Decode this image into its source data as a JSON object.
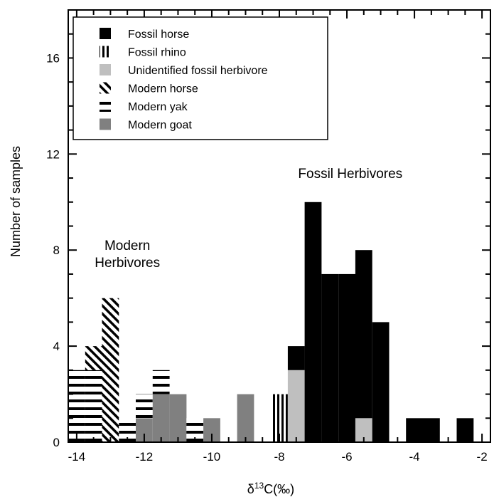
{
  "chart_data": {
    "type": "bar",
    "subtype": "stacked-histogram",
    "xlabel": "δ13C(‰)",
    "ylabel": "Number of samples",
    "xlim": [
      -14.25,
      -1.75
    ],
    "ylim": [
      0,
      18
    ],
    "x_ticks": [
      -14,
      -12,
      -10,
      -8,
      -6,
      -4,
      -2
    ],
    "y_ticks": [
      0,
      4,
      8,
      12,
      16
    ],
    "bin_width": 0.5,
    "legend_position": "top-left",
    "legend": [
      {
        "name": "Fossil horse",
        "color": "#000000",
        "pattern": "solid"
      },
      {
        "name": "Fossil rhino",
        "color": "#000000",
        "pattern": "vertical-lines"
      },
      {
        "name": "Unidentified fossil herbivore",
        "color": "#bfbfbf",
        "pattern": "solid"
      },
      {
        "name": "Modern horse",
        "color": "#000000",
        "pattern": "diagonal-lines"
      },
      {
        "name": "Modern yak",
        "color": "#000000",
        "pattern": "horizontal-lines"
      },
      {
        "name": "Modern goat",
        "color": "#808080",
        "pattern": "solid"
      }
    ],
    "annotations": [
      {
        "lines": [
          "Modern",
          "Herbivores"
        ],
        "x": -12.5,
        "y": 8.0
      },
      {
        "lines": [
          "Fossil Herbivores"
        ],
        "x": -5.9,
        "y": 11.0
      }
    ],
    "bins": [
      {
        "x0": -14.25,
        "x1": -13.75,
        "stack": [
          {
            "series": "Modern yak",
            "count": 3
          }
        ]
      },
      {
        "x0": -13.75,
        "x1": -13.25,
        "stack": [
          {
            "series": "Modern yak",
            "count": 3
          },
          {
            "series": "Modern horse",
            "count": 1
          }
        ]
      },
      {
        "x0": -13.25,
        "x1": -12.75,
        "stack": [
          {
            "series": "Modern horse",
            "count": 6
          }
        ]
      },
      {
        "x0": -12.75,
        "x1": -12.25,
        "stack": [
          {
            "series": "Modern yak",
            "count": 1
          }
        ]
      },
      {
        "x0": -12.25,
        "x1": -11.75,
        "stack": [
          {
            "series": "Modern goat",
            "count": 1
          },
          {
            "series": "Modern yak",
            "count": 1
          }
        ]
      },
      {
        "x0": -11.75,
        "x1": -11.25,
        "stack": [
          {
            "series": "Modern goat",
            "count": 2
          },
          {
            "series": "Modern yak",
            "count": 1
          }
        ]
      },
      {
        "x0": -11.25,
        "x1": -10.75,
        "stack": [
          {
            "series": "Modern goat",
            "count": 2
          }
        ]
      },
      {
        "x0": -10.75,
        "x1": -10.25,
        "stack": [
          {
            "series": "Modern yak",
            "count": 1
          }
        ]
      },
      {
        "x0": -10.25,
        "x1": -9.75,
        "stack": [
          {
            "series": "Modern goat",
            "count": 1
          }
        ]
      },
      {
        "x0": -9.25,
        "x1": -8.75,
        "stack": [
          {
            "series": "Modern goat",
            "count": 2
          }
        ]
      },
      {
        "x0": -8.25,
        "x1": -7.75,
        "stack": [
          {
            "series": "Fossil rhino",
            "count": 2
          }
        ]
      },
      {
        "x0": -7.75,
        "x1": -7.25,
        "stack": [
          {
            "series": "Unidentified fossil herbivore",
            "count": 3
          },
          {
            "series": "Fossil horse",
            "count": 1
          }
        ]
      },
      {
        "x0": -7.25,
        "x1": -6.75,
        "stack": [
          {
            "series": "Fossil horse",
            "count": 10
          }
        ]
      },
      {
        "x0": -6.75,
        "x1": -6.25,
        "stack": [
          {
            "series": "Fossil horse",
            "count": 7
          }
        ]
      },
      {
        "x0": -6.25,
        "x1": -5.75,
        "stack": [
          {
            "series": "Fossil horse",
            "count": 7
          }
        ]
      },
      {
        "x0": -5.75,
        "x1": -5.25,
        "stack": [
          {
            "series": "Unidentified fossil herbivore",
            "count": 1
          },
          {
            "series": "Fossil horse",
            "count": 7
          }
        ]
      },
      {
        "x0": -5.25,
        "x1": -4.75,
        "stack": [
          {
            "series": "Fossil horse",
            "count": 5
          }
        ]
      },
      {
        "x0": -4.25,
        "x1": -3.75,
        "stack": [
          {
            "series": "Fossil horse",
            "count": 1
          }
        ]
      },
      {
        "x0": -3.75,
        "x1": -3.25,
        "stack": [
          {
            "series": "Fossil horse",
            "count": 1
          }
        ]
      },
      {
        "x0": -2.75,
        "x1": -2.25,
        "stack": [
          {
            "series": "Fossil horse",
            "count": 1
          }
        ]
      }
    ]
  }
}
